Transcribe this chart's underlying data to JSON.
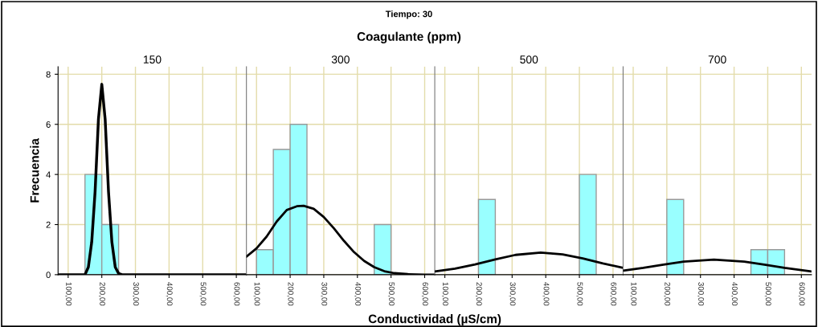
{
  "chart_data": [
    {
      "type": "histogram",
      "title": "150",
      "annotations": [
        "Tiempo: 30",
        "Coagulante (ppm)"
      ],
      "ylabel": "Frecuencia",
      "bins": [
        100,
        150,
        200,
        250,
        300,
        350,
        400,
        450,
        500,
        550
      ],
      "xlim": [
        70,
        630
      ],
      "xticks": [
        {
          "value": 100,
          "label": "100,00"
        },
        {
          "value": 200,
          "label": "200,00"
        },
        {
          "value": 300,
          "label": "300,00"
        },
        {
          "value": 400,
          "label": "400,00"
        },
        {
          "value": 500,
          "label": "500,00"
        },
        {
          "value": 600,
          "label": "600,00"
        }
      ],
      "ylim": [
        0,
        8.3
      ],
      "yticks": [
        0,
        2,
        4,
        6,
        8
      ],
      "grid": true,
      "series": [
        {
          "color": "#99ffff",
          "values": [
            0,
            4,
            2,
            0,
            0,
            0,
            0,
            0,
            0
          ]
        },
        {
          "type": "line",
          "color": "#000000",
          "x": [
            70,
            150,
            160,
            170,
            180,
            190,
            200,
            210,
            220,
            230,
            240,
            250,
            260,
            630
          ],
          "values": [
            0,
            0,
            0.3,
            1.3,
            3.3,
            6.2,
            7.6,
            6.2,
            3.3,
            1.3,
            0.3,
            0.05,
            0,
            0
          ]
        }
      ]
    },
    {
      "type": "histogram",
      "title": "300",
      "xlabel": "Conductividad (µS/cm)",
      "tick_labels": "x",
      "bins": [
        100,
        150,
        200,
        250,
        300,
        350,
        400,
        450,
        500,
        550
      ],
      "xlim": [
        70,
        630
      ],
      "xticks": [
        {
          "value": 100,
          "label": "100,00"
        },
        {
          "value": 200,
          "label": "200,00"
        },
        {
          "value": 300,
          "label": "300,00"
        },
        {
          "value": 400,
          "label": "400,00"
        },
        {
          "value": 500,
          "label": "500,00"
        },
        {
          "value": 600,
          "label": "600,00"
        }
      ],
      "ylim": [
        0,
        8.3
      ],
      "yticks": [
        0,
        2,
        4,
        6,
        8
      ],
      "grid": true,
      "series": [
        {
          "color": "#99ffff",
          "values": [
            1,
            5,
            6,
            0,
            0,
            0,
            0,
            2,
            0
          ]
        },
        {
          "type": "line",
          "color": "#000000",
          "x": [
            70,
            100,
            130,
            160,
            190,
            220,
            240,
            270,
            300,
            330,
            360,
            390,
            420,
            450,
            480,
            510,
            550,
            600,
            630
          ],
          "values": [
            0.72,
            1.05,
            1.52,
            2.12,
            2.58,
            2.73,
            2.75,
            2.63,
            2.3,
            1.85,
            1.35,
            0.9,
            0.55,
            0.3,
            0.14,
            0.06,
            0.02,
            0,
            0
          ]
        }
      ]
    },
    {
      "type": "histogram",
      "title": "500",
      "tick_labels": "x",
      "bins": [
        100,
        150,
        200,
        250,
        300,
        350,
        400,
        450,
        500,
        550
      ],
      "xlim": [
        70,
        630
      ],
      "xticks": [
        {
          "value": 100,
          "label": "100,00"
        },
        {
          "value": 200,
          "label": "200,00"
        },
        {
          "value": 300,
          "label": "300,00"
        },
        {
          "value": 400,
          "label": "400,00"
        },
        {
          "value": 500,
          "label": "500,00"
        },
        {
          "value": 600,
          "label": "600,00"
        }
      ],
      "ylim": [
        0,
        8.3
      ],
      "yticks": [
        0,
        2,
        4,
        6,
        8
      ],
      "grid": true,
      "series": [
        {
          "color": "#99ffff",
          "values": [
            0,
            0,
            3,
            0,
            0,
            0,
            0,
            0,
            4
          ]
        },
        {
          "type": "line",
          "color": "#000000",
          "x": [
            70,
            130,
            190,
            250,
            310,
            385,
            450,
            510,
            570,
            630
          ],
          "values": [
            0.13,
            0.24,
            0.41,
            0.61,
            0.79,
            0.88,
            0.81,
            0.65,
            0.45,
            0.27
          ]
        }
      ]
    },
    {
      "type": "histogram",
      "title": "700",
      "tick_labels": "x",
      "bins": [
        100,
        150,
        200,
        250,
        300,
        350,
        400,
        450,
        500,
        550
      ],
      "xlim": [
        70,
        630
      ],
      "xticks": [
        {
          "value": 100,
          "label": "100,00"
        },
        {
          "value": 200,
          "label": "200,00"
        },
        {
          "value": 300,
          "label": "300,00"
        },
        {
          "value": 400,
          "label": "400,00"
        },
        {
          "value": 500,
          "label": "500,00"
        },
        {
          "value": 600,
          "label": "600,00"
        }
      ],
      "ylim": [
        0,
        8.3
      ],
      "yticks": [
        0,
        2,
        4,
        6,
        8
      ],
      "grid": true,
      "series": [
        {
          "color": "#99ffff",
          "values": [
            0,
            0,
            3,
            0,
            0,
            0,
            0,
            1,
            1
          ]
        },
        {
          "type": "line",
          "color": "#000000",
          "x": [
            70,
            130,
            190,
            250,
            340,
            430,
            490,
            550,
            630
          ],
          "values": [
            0.16,
            0.27,
            0.4,
            0.52,
            0.6,
            0.52,
            0.4,
            0.27,
            0.13
          ]
        }
      ]
    }
  ]
}
